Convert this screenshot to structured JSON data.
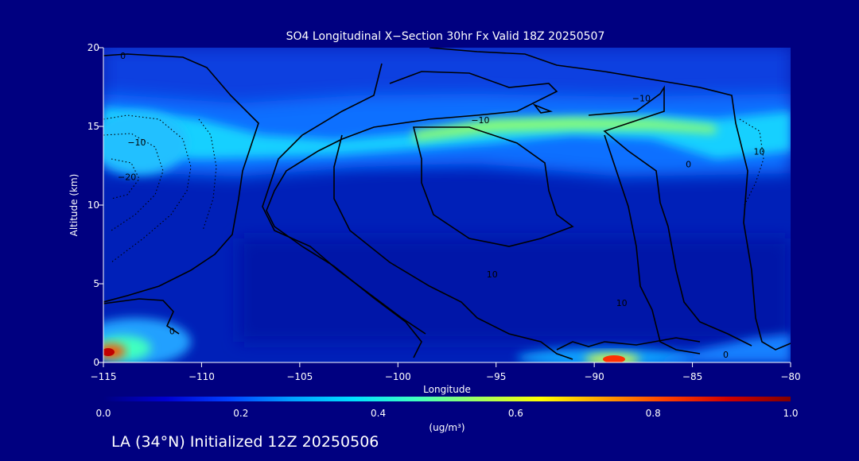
{
  "chart_data": {
    "type": "heatmap",
    "title": "SO4 Longitudinal X−Section 30hr  Fx Valid 18Z 20250507",
    "xlabel": "Longitude",
    "ylabel": "Altitude (km)",
    "xlim": [
      -115,
      -80
    ],
    "ylim": [
      0,
      20
    ],
    "x_ticks": [
      -115,
      -110,
      -105,
      -100,
      -95,
      -90,
      -85,
      -80
    ],
    "x_tick_labels": [
      "−115",
      "−110",
      "−105",
      "−100",
      "−95",
      "−90",
      "−85",
      "−80"
    ],
    "y_ticks": [
      0,
      5,
      10,
      15,
      20
    ],
    "y_tick_labels": [
      "0",
      "5",
      "10",
      "15",
      "20"
    ],
    "colorbar": {
      "min": 0.0,
      "max": 1.0,
      "ticks": [
        0.0,
        0.2,
        0.4,
        0.6,
        0.8,
        1.0
      ],
      "tick_labels": [
        "0.0",
        "0.2",
        "0.4",
        "0.6",
        "0.8",
        "1.0"
      ],
      "unit_label": "(ug/m³)",
      "stops": [
        "#000080",
        "#0000d0",
        "#0040ff",
        "#00a0ff",
        "#00e0ff",
        "#40ffc0",
        "#a0ff60",
        "#ffff00",
        "#ffa000",
        "#ff4000",
        "#d00000",
        "#800000"
      ]
    },
    "plume_layers": [
      {
        "lon_range": [
          -115,
          -80
        ],
        "alt_center": [
          14.2,
          13.4,
          13.2,
          13.6,
          14.6,
          15.2,
          14.2,
          14.8
        ],
        "peak": 0.55
      },
      {
        "lon_range": [
          -115,
          -111
        ],
        "alt_center": [
          1.0
        ],
        "peak": 0.95
      },
      {
        "lon_range": [
          -90,
          -88
        ],
        "alt_center": [
          0.3
        ],
        "peak": 0.95
      }
    ],
    "contour_labels": [
      {
        "text": "0",
        "lon": -114,
        "alt": 19.5
      },
      {
        "text": "−10",
        "lon": -87.6,
        "alt": 16.8
      },
      {
        "text": "−10",
        "lon": -113.3,
        "alt": 14.0
      },
      {
        "text": "−20",
        "lon": -113.8,
        "alt": 11.8
      },
      {
        "text": "−10",
        "lon": -95.8,
        "alt": 15.4
      },
      {
        "text": "10",
        "lon": -95.2,
        "alt": 5.6
      },
      {
        "text": "10",
        "lon": -88.6,
        "alt": 3.8
      },
      {
        "text": "10",
        "lon": -81.6,
        "alt": 13.4
      },
      {
        "text": "0",
        "lon": -85.2,
        "alt": 12.6
      },
      {
        "text": "0",
        "lon": -111.5,
        "alt": 2.0
      },
      {
        "text": "0",
        "lon": -83.3,
        "alt": 0.5
      }
    ]
  },
  "footer": {
    "init_text": "LA (34°N) Initialized 12Z 20250506"
  },
  "colors": {
    "background": "#000080",
    "axis": "#ffffff",
    "contour": "#000000"
  }
}
